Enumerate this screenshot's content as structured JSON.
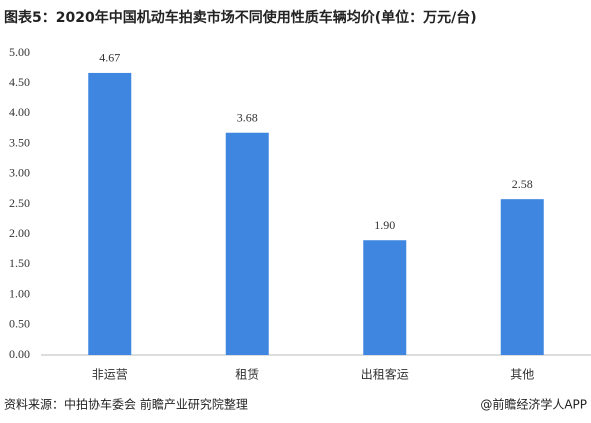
{
  "chart_data": {
    "type": "bar",
    "title": "图表5：2020年中国机动车拍卖市场不同使用性质车辆均价(单位：万元/台)",
    "categories": [
      "非运营",
      "租赁",
      "出租客运",
      "其他"
    ],
    "values": [
      4.67,
      3.68,
      1.9,
      2.58
    ],
    "value_labels": [
      "4.67",
      "3.68",
      "1.90",
      "2.58"
    ],
    "color": "#3f86e0",
    "ylim": [
      0,
      5
    ],
    "yticks": [
      {
        "value": 0,
        "label": "0.00"
      },
      {
        "value": 0.5,
        "label": "0.50"
      },
      {
        "value": 1,
        "label": "1.00"
      },
      {
        "value": 1.5,
        "label": "1.50"
      },
      {
        "value": 2,
        "label": "2.00"
      },
      {
        "value": 2.5,
        "label": "2.50"
      },
      {
        "value": 3,
        "label": "3.00"
      },
      {
        "value": 3.5,
        "label": "3.50"
      },
      {
        "value": 4,
        "label": "4.00"
      },
      {
        "value": 4.5,
        "label": "4.50"
      },
      {
        "value": 5,
        "label": "5.00"
      }
    ],
    "grid": false,
    "source": "资料来源：中拍协车委会 前瞻产业研究院整理",
    "credit": "@前瞻经济学人APP"
  }
}
